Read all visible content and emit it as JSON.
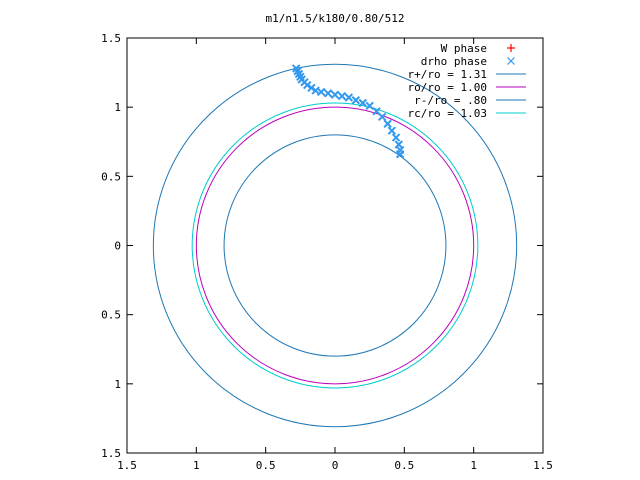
{
  "chart_data": {
    "type": "scatter",
    "title": "m1/n1.5/k180/0.80/512",
    "xlim": [
      -1.5,
      1.5
    ],
    "ylim": [
      -1.5,
      1.5
    ],
    "x_ticks": [
      {
        "value": -1.5,
        "label": "1.5"
      },
      {
        "value": -1.0,
        "label": "1"
      },
      {
        "value": -0.5,
        "label": "0.5"
      },
      {
        "value": 0.0,
        "label": "0"
      },
      {
        "value": 0.5,
        "label": "0.5"
      },
      {
        "value": 1.0,
        "label": "1"
      },
      {
        "value": 1.5,
        "label": "1.5"
      }
    ],
    "y_ticks": [
      {
        "value": 1.5,
        "label": "1.5"
      },
      {
        "value": 1.0,
        "label": "1"
      },
      {
        "value": 0.5,
        "label": "0.5"
      },
      {
        "value": 0.0,
        "label": "0"
      },
      {
        "value": -0.5,
        "label": "0.5"
      },
      {
        "value": -1.0,
        "label": "1"
      },
      {
        "value": -1.5,
        "label": "1.5"
      }
    ],
    "grid": false,
    "legend_position": "top-right",
    "series": [
      {
        "name": "W phase",
        "kind": "points",
        "marker": "plus",
        "color": "#ff0000",
        "x": [],
        "y": []
      },
      {
        "name": "drho phase",
        "kind": "points",
        "marker": "cross",
        "color": "#3399ee",
        "x": [
          -0.28,
          -0.27,
          -0.26,
          -0.25,
          -0.24,
          -0.22,
          -0.2,
          -0.17,
          -0.14,
          -0.1,
          -0.05,
          0.0,
          0.05,
          0.1,
          0.15,
          0.2,
          0.25,
          0.3,
          0.34,
          0.38,
          0.41,
          0.44,
          0.46,
          0.47,
          0.47
        ],
        "y": [
          1.28,
          1.26,
          1.24,
          1.22,
          1.2,
          1.18,
          1.16,
          1.14,
          1.12,
          1.11,
          1.1,
          1.09,
          1.08,
          1.07,
          1.05,
          1.03,
          1.01,
          0.97,
          0.93,
          0.88,
          0.83,
          0.78,
          0.73,
          0.69,
          0.66
        ]
      },
      {
        "name": "r+/ro = 1.31",
        "kind": "circle",
        "radius": 1.31,
        "color": "#1f77b4"
      },
      {
        "name": "ro/ro = 1.00",
        "kind": "circle",
        "radius": 1.0,
        "color": "#bb00bb"
      },
      {
        "name": "r-/ro = .80",
        "kind": "circle",
        "radius": 0.8,
        "color": "#1f77b4"
      },
      {
        "name": "rc/ro = 1.03",
        "kind": "circle",
        "radius": 1.03,
        "color": "#00cccc"
      }
    ]
  }
}
